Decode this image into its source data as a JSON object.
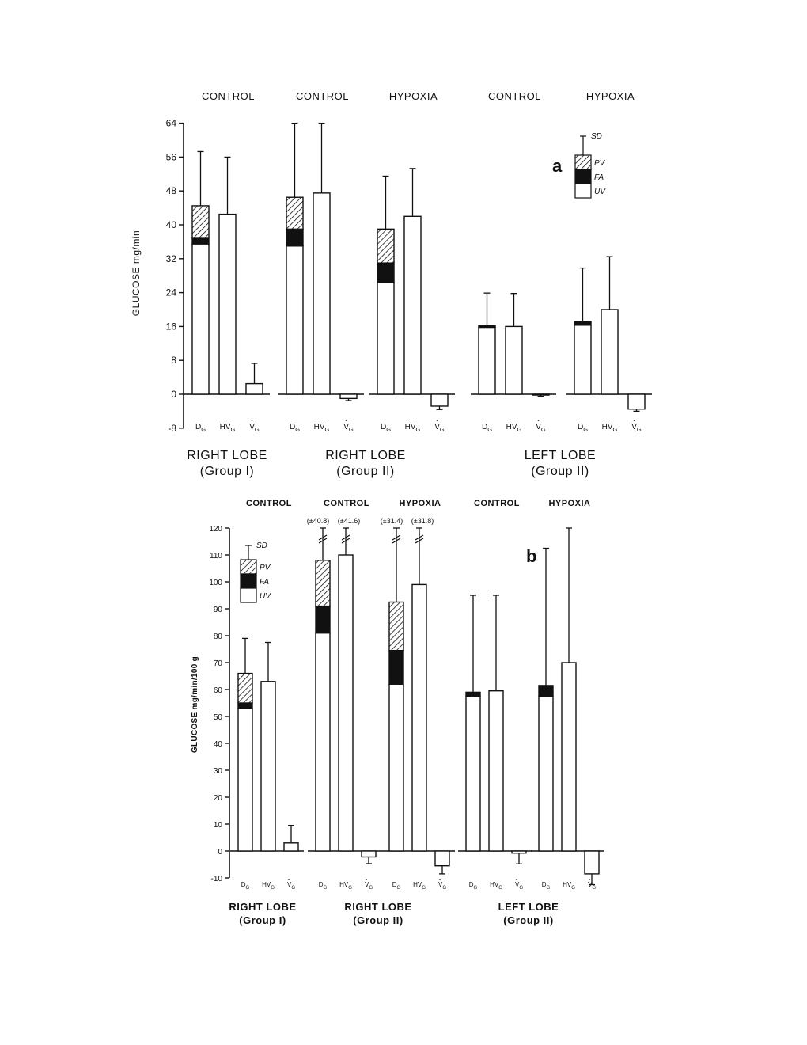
{
  "chart_data": [
    {
      "panel_label": "a",
      "type": "bar",
      "ylabel": "GLUCOSE mg/min",
      "ylim": [
        -8,
        64
      ],
      "yticks": [
        -8,
        0,
        8,
        16,
        24,
        32,
        40,
        48,
        56,
        64
      ],
      "legend": {
        "sd": "SD",
        "items": [
          "PV",
          "FA",
          "UV"
        ],
        "placement": "top-right"
      },
      "groups": [
        {
          "condition": "CONTROL",
          "lobe": "RIGHT LOBE",
          "group": "(Group I)",
          "bars": [
            {
              "label": "DG",
              "uv": 35.5,
              "fa": 1.5,
              "pv": 7.5,
              "sd": 12.8
            },
            {
              "label": "HVG",
              "total": 42.5,
              "sd": 13.5
            },
            {
              "label": "VG",
              "total": 2.5,
              "sd": 4.8
            }
          ]
        },
        {
          "condition": "CONTROL",
          "lobe": "RIGHT LOBE",
          "group": "(Group II)",
          "bars": [
            {
              "label": "DG",
              "uv": 35.0,
              "fa": 4.0,
              "pv": 7.5,
              "sd": 19.0
            },
            {
              "label": "HVG",
              "total": 47.5,
              "sd": 18.5
            },
            {
              "label": "VG",
              "total": -1.0,
              "sd": 0.5
            }
          ]
        },
        {
          "condition": "HYPOXIA",
          "lobe": "RIGHT LOBE",
          "group": "(Group II)",
          "bars": [
            {
              "label": "DG",
              "uv": 26.5,
              "fa": 4.5,
              "pv": 8.0,
              "sd": 12.5
            },
            {
              "label": "HVG",
              "total": 42.0,
              "sd": 11.3
            },
            {
              "label": "VG",
              "total": -2.8,
              "sd": 0.8
            }
          ]
        },
        {
          "condition": "CONTROL",
          "lobe": "LEFT LOBE",
          "group": "(Group II)",
          "bars": [
            {
              "label": "DG",
              "uv": 15.8,
              "fa": 0.4,
              "pv": 0,
              "sd": 7.7
            },
            {
              "label": "HVG",
              "total": 16.0,
              "sd": 7.8
            },
            {
              "label": "VG",
              "total": -0.2,
              "sd": 0.3
            }
          ]
        },
        {
          "condition": "HYPOXIA",
          "lobe": "LEFT LOBE",
          "group": "(Group II)",
          "bars": [
            {
              "label": "DG",
              "uv": 16.3,
              "fa": 0.9,
              "pv": 0,
              "sd": 12.6
            },
            {
              "label": "HVG",
              "total": 20.0,
              "sd": 12.5
            },
            {
              "label": "VG",
              "total": -3.5,
              "sd": 0.5
            }
          ]
        }
      ]
    },
    {
      "panel_label": "b",
      "type": "bar",
      "ylabel": "GLUCOSE mg/min/100 g",
      "ylim": [
        -10,
        120
      ],
      "yticks": [
        -10,
        0,
        10,
        20,
        30,
        40,
        50,
        60,
        70,
        80,
        90,
        100,
        110,
        120
      ],
      "legend": {
        "sd": "SD",
        "items": [
          "PV",
          "FA",
          "UV"
        ],
        "placement": "top-left"
      },
      "groups": [
        {
          "condition": "CONTROL",
          "lobe": "RIGHT LOBE",
          "group": "(Group I)",
          "bars": [
            {
              "label": "DG",
              "uv": 53,
              "fa": 2,
              "pv": 11,
              "sd": 13
            },
            {
              "label": "HVG",
              "total": 63,
              "sd": 14.5
            },
            {
              "label": "VG",
              "total": 3,
              "sd": 6.5
            }
          ]
        },
        {
          "condition": "CONTROL",
          "lobe": "RIGHT LOBE",
          "group": "(Group II)",
          "bars": [
            {
              "label": "DG",
              "uv": 81,
              "fa": 10,
              "pv": 17,
              "sd": 40.8,
              "sd_text": "(±40.8)"
            },
            {
              "label": "HVG",
              "total": 110,
              "sd": 41.6,
              "sd_text": "(±41.6)"
            },
            {
              "label": "VG",
              "total": -2.2,
              "sd": 2.5
            }
          ]
        },
        {
          "condition": "HYPOXIA",
          "lobe": "RIGHT LOBE",
          "group": "(Group II)",
          "bars": [
            {
              "label": "DG",
              "uv": 62,
              "fa": 12.5,
              "pv": 18,
              "sd": 31.4,
              "sd_text": "(±31.4)"
            },
            {
              "label": "HVG",
              "total": 99,
              "sd": 31.8,
              "sd_text": "(±31.8)"
            },
            {
              "label": "VG",
              "total": -5.5,
              "sd": 3.0
            }
          ]
        },
        {
          "condition": "CONTROL",
          "lobe": "LEFT LOBE",
          "group": "(Group II)",
          "bars": [
            {
              "label": "DG",
              "uv": 57.5,
              "fa": 1.5,
              "pv": 0,
              "sd": 36
            },
            {
              "label": "HVG",
              "total": 59.5,
              "sd": 35.5
            },
            {
              "label": "VG",
              "total": -0.8,
              "sd": 4
            }
          ]
        },
        {
          "condition": "HYPOXIA",
          "lobe": "LEFT LOBE",
          "group": "(Group II)",
          "bars": [
            {
              "label": "DG",
              "uv": 57.5,
              "fa": 4,
              "pv": 0,
              "sd": 51
            },
            {
              "label": "HVG",
              "total": 70,
              "sd": 51
            },
            {
              "label": "VG",
              "total": -8.5,
              "sd": 4
            }
          ]
        }
      ]
    }
  ]
}
